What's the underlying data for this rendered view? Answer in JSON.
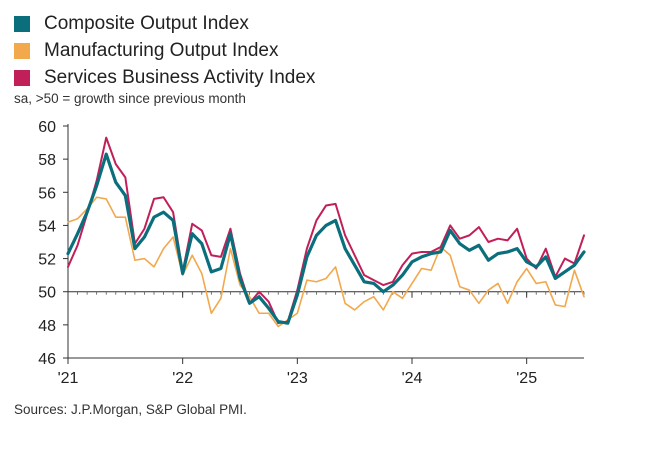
{
  "chart_data": {
    "type": "line",
    "title": "",
    "note": "sa, >50 = growth since previous month",
    "source": "Sources: J.P.Morgan, S&P Global PMI.",
    "xlabel": "",
    "ylabel": "",
    "ylim": [
      46,
      60
    ],
    "yticks": [
      46,
      48,
      50,
      52,
      54,
      56,
      58,
      60
    ],
    "reference_line": 50,
    "x_start": "2021-01",
    "x_labels": [
      {
        "label": "'21",
        "index": 0
      },
      {
        "label": "'22",
        "index": 12
      },
      {
        "label": "'23",
        "index": 24
      },
      {
        "label": "'24",
        "index": 36
      },
      {
        "label": "'25",
        "index": 48
      }
    ],
    "series": [
      {
        "name": "Composite Output Index",
        "color": "#0b6e7c",
        "values": [
          52.3,
          53.5,
          54.8,
          56.4,
          58.3,
          56.6,
          55.8,
          52.6,
          53.3,
          54.5,
          54.8,
          54.3,
          51.1,
          53.5,
          52.9,
          51.2,
          51.4,
          53.5,
          50.8,
          49.3,
          49.7,
          49.0,
          48.2,
          48.1,
          49.8,
          52.1,
          53.4,
          54.0,
          54.3,
          52.6,
          51.6,
          50.6,
          50.5,
          50.0,
          50.4,
          51.0,
          51.8,
          52.1,
          52.3,
          52.4,
          53.7,
          52.9,
          52.5,
          52.8,
          51.9,
          52.3,
          52.4,
          52.6,
          51.8,
          51.5,
          52.1,
          50.8,
          51.2,
          51.6,
          52.4
        ]
      },
      {
        "name": "Manufacturing Output Index",
        "color": "#f2a84c",
        "values": [
          54.2,
          54.4,
          55.0,
          55.7,
          55.6,
          54.5,
          54.5,
          51.9,
          52.0,
          51.5,
          52.6,
          53.3,
          51.0,
          52.2,
          51.1,
          48.7,
          49.6,
          52.6,
          50.4,
          49.7,
          48.7,
          48.7,
          47.9,
          48.3,
          48.7,
          50.7,
          50.6,
          50.8,
          51.5,
          49.3,
          48.9,
          49.4,
          49.7,
          48.9,
          50.0,
          49.6,
          50.5,
          51.4,
          51.3,
          52.7,
          52.2,
          50.3,
          50.1,
          49.3,
          50.1,
          50.5,
          49.3,
          50.6,
          51.4,
          50.5,
          50.6,
          49.2,
          49.1,
          51.3,
          49.7
        ]
      },
      {
        "name": "Services Business Activity Index",
        "color": "#c11f5a",
        "values": [
          51.5,
          52.8,
          54.7,
          56.7,
          59.3,
          57.7,
          56.9,
          52.9,
          53.8,
          55.6,
          55.7,
          54.8,
          51.2,
          54.1,
          53.7,
          52.2,
          52.1,
          53.8,
          51.1,
          49.3,
          50.0,
          49.4,
          48.1,
          48.2,
          50.1,
          52.6,
          54.3,
          55.2,
          55.3,
          53.4,
          52.2,
          51.0,
          50.7,
          50.4,
          50.6,
          51.6,
          52.3,
          52.4,
          52.4,
          52.7,
          54.0,
          53.2,
          53.4,
          53.9,
          53.0,
          53.2,
          53.1,
          53.8,
          52.0,
          51.4,
          52.6,
          50.9,
          52.0,
          51.7,
          53.4
        ]
      }
    ]
  }
}
